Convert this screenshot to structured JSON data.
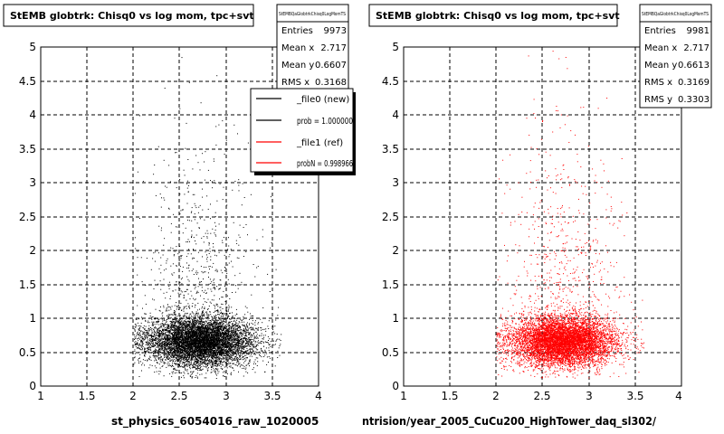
{
  "chart_data": [
    {
      "type": "scatter",
      "title": "StEMB globtrk: Chisq0 vs log mom, tpc+svt",
      "xlabel": "st_physics_6054016_raw_1020005",
      "ylabel": "",
      "xlim": [
        1,
        4
      ],
      "ylim": [
        0,
        5
      ],
      "x_ticks": [
        "1",
        "1.5",
        "2",
        "2.5",
        "3",
        "3.5",
        "4"
      ],
      "y_ticks": [
        "0",
        "0.5",
        "1",
        "1.5",
        "2",
        "2.5",
        "3",
        "3.5",
        "4",
        "4.5",
        "5"
      ],
      "grid": true,
      "marker_color": "#000000",
      "stats": {
        "header": "StEMBQaGlobtrkChisq0LogMomTS",
        "rows": [
          {
            "label": "Entries",
            "value": "9973"
          },
          {
            "label": "Mean x",
            "value": "2.717"
          },
          {
            "label": "Mean y",
            "value": "0.6607"
          },
          {
            "label": "RMS x",
            "value": "0.3168"
          }
        ]
      },
      "legend": {
        "placement": "top-right",
        "entries": [
          {
            "label": "_file0 (new)",
            "color": "#000000"
          },
          {
            "label": "prob = 1.000000",
            "color": "#000000"
          },
          {
            "label": "_file1 (ref)",
            "color": "#ff0000"
          },
          {
            "label": "probN = 0.998966",
            "color": "#ff0000"
          }
        ]
      },
      "distribution": {
        "entries": 9973,
        "mean_x": 2.717,
        "mean_y": 0.6607,
        "rms_x": 0.3168,
        "x_range": [
          2,
          3.6
        ]
      }
    },
    {
      "type": "scatter",
      "title": "StEMB globtrk: Chisq0 vs log mom, tpc+svt",
      "xlabel": "ntrision/year_2005_CuCu200_HighTower_daq_sl302/",
      "ylabel": "",
      "xlim": [
        1,
        4
      ],
      "ylim": [
        0,
        5
      ],
      "x_ticks": [
        "1",
        "1.5",
        "2",
        "2.5",
        "3",
        "3.5",
        "4"
      ],
      "y_ticks": [
        "0",
        "0.5",
        "1",
        "1.5",
        "2",
        "2.5",
        "3",
        "3.5",
        "4",
        "4.5",
        "5"
      ],
      "grid": true,
      "marker_color": "#ff0000",
      "stats": {
        "header": "StEMBQaGlobtrkChisq0LogMomTS",
        "rows": [
          {
            "label": "Entries",
            "value": "9981"
          },
          {
            "label": "Mean x",
            "value": "2.717"
          },
          {
            "label": "Mean y",
            "value": "0.6613"
          },
          {
            "label": "RMS x",
            "value": "0.3169"
          },
          {
            "label": "RMS y",
            "value": "0.3303"
          }
        ]
      },
      "distribution": {
        "entries": 9981,
        "mean_x": 2.717,
        "mean_y": 0.6613,
        "rms_x": 0.3169,
        "rms_y": 0.3303,
        "x_range": [
          2,
          3.6
        ]
      }
    }
  ]
}
